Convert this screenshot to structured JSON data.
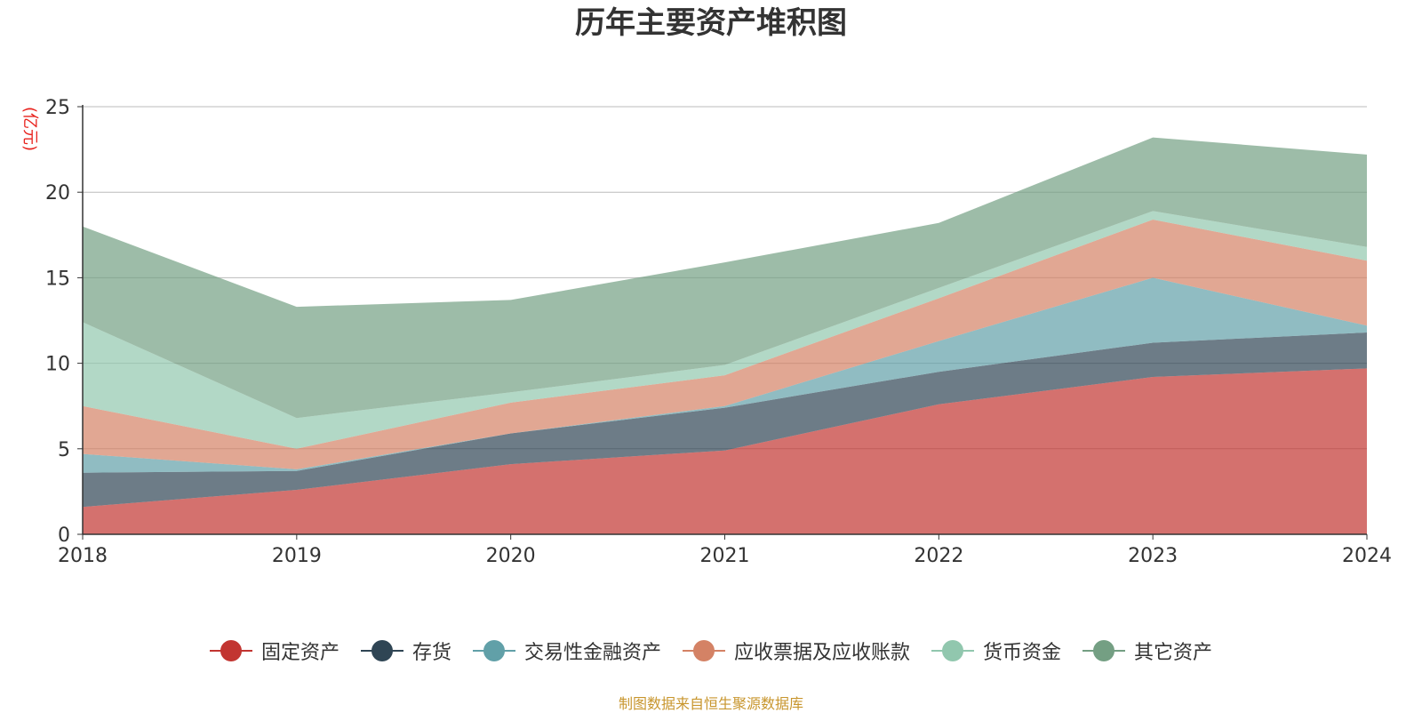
{
  "chart_data": {
    "type": "area",
    "stacked": true,
    "title": "历年主要资产堆积图",
    "ylabel": "(亿元)",
    "x": [
      "2018",
      "2019",
      "2020",
      "2021",
      "2022",
      "2023",
      "2024"
    ],
    "ylim": [
      0,
      25
    ],
    "yticks": [
      0,
      5,
      10,
      15,
      20,
      25
    ],
    "grid": true,
    "legend_position": "bottom",
    "series": [
      {
        "name": "固定资产",
        "color": "#c23531",
        "values": [
          1.6,
          2.6,
          4.1,
          4.9,
          7.6,
          9.2,
          9.7
        ]
      },
      {
        "name": "存货",
        "color": "#2f4554",
        "values": [
          2.0,
          1.1,
          1.8,
          2.5,
          1.9,
          2.0,
          2.1
        ]
      },
      {
        "name": "交易性金融资产",
        "color": "#61a0a8",
        "values": [
          1.1,
          0.1,
          0.0,
          0.1,
          1.8,
          3.8,
          0.4
        ]
      },
      {
        "name": "应收票据及应收账款",
        "color": "#d48265",
        "values": [
          2.8,
          1.2,
          1.8,
          1.8,
          2.5,
          3.4,
          3.8
        ]
      },
      {
        "name": "货币资金",
        "color": "#91c7ae",
        "values": [
          4.9,
          1.8,
          0.6,
          0.6,
          0.6,
          0.5,
          0.8
        ]
      },
      {
        "name": "其它资产",
        "color": "#749f83",
        "values": [
          5.6,
          6.5,
          5.4,
          6.0,
          3.8,
          4.3,
          5.4
        ]
      }
    ]
  },
  "source_note": "制图数据来自恒生聚源数据库"
}
